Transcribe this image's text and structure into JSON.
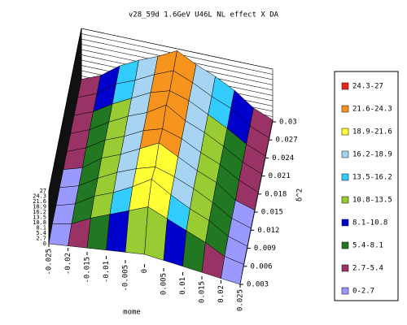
{
  "chart_data": {
    "type": "surface",
    "title": "v28_59d 1.6GeV U46L NL effect X DA",
    "x_label": "mome",
    "y_label": "δ^2",
    "xlim": [
      -0.025,
      0.025
    ],
    "ylim": [
      0.003,
      0.03
    ],
    "zlim": [
      0,
      27
    ],
    "xticks": [
      -0.025,
      -0.02,
      -0.015,
      -0.01,
      -0.005,
      0,
      0.005,
      0.01,
      0.015,
      0.02,
      0.025
    ],
    "yticks": [
      0.003,
      0.006,
      0.009,
      0.012,
      0.015,
      0.018,
      0.021,
      0.024,
      0.027,
      0.03
    ],
    "zticks": [
      0,
      2.7,
      5.4,
      8.1,
      10.8,
      13.5,
      16.2,
      18.9,
      21.6,
      24.3,
      27
    ],
    "z": [
      [
        0,
        1,
        2,
        3,
        4,
        5,
        4,
        3,
        2,
        1,
        0
      ],
      [
        1,
        3,
        8,
        12,
        16,
        20,
        16,
        12,
        8,
        3,
        1
      ],
      [
        1,
        4,
        10,
        14,
        19,
        25,
        19,
        14,
        10,
        4,
        1
      ],
      [
        1,
        4,
        10,
        15,
        19,
        22,
        19,
        15,
        10,
        4,
        1
      ],
      [
        1,
        4,
        11,
        15,
        20,
        25,
        20,
        15,
        11,
        4,
        1
      ],
      [
        1,
        5,
        11,
        15,
        20,
        23,
        20,
        15,
        11,
        5,
        1
      ],
      [
        1,
        5,
        11,
        16,
        20,
        26,
        20,
        16,
        11,
        5,
        1
      ],
      [
        1,
        5,
        11,
        16,
        21,
        24,
        21,
        16,
        11,
        5,
        1
      ],
      [
        1,
        5,
        12,
        16,
        21,
        25,
        21,
        16,
        12,
        5,
        1
      ],
      [
        1,
        5,
        12,
        17,
        21,
        26,
        21,
        17,
        12,
        5,
        1
      ]
    ],
    "legend": [
      {
        "name": "24.3-27",
        "color": "#e8231c"
      },
      {
        "name": "21.6-24.3",
        "color": "#f7941d"
      },
      {
        "name": "18.9-21.6",
        "color": "#ffff33"
      },
      {
        "name": "16.2-18.9",
        "color": "#a6d4f2"
      },
      {
        "name": "13.5-16.2",
        "color": "#33ccff"
      },
      {
        "name": "10.8-13.5",
        "color": "#99cc33"
      },
      {
        "name": "8.1-10.8",
        "color": "#0000cc"
      },
      {
        "name": "5.4-8.1",
        "color": "#227722"
      },
      {
        "name": "2.7-5.4",
        "color": "#993366"
      },
      {
        "name": "0-2.7",
        "color": "#9999ff"
      }
    ]
  }
}
